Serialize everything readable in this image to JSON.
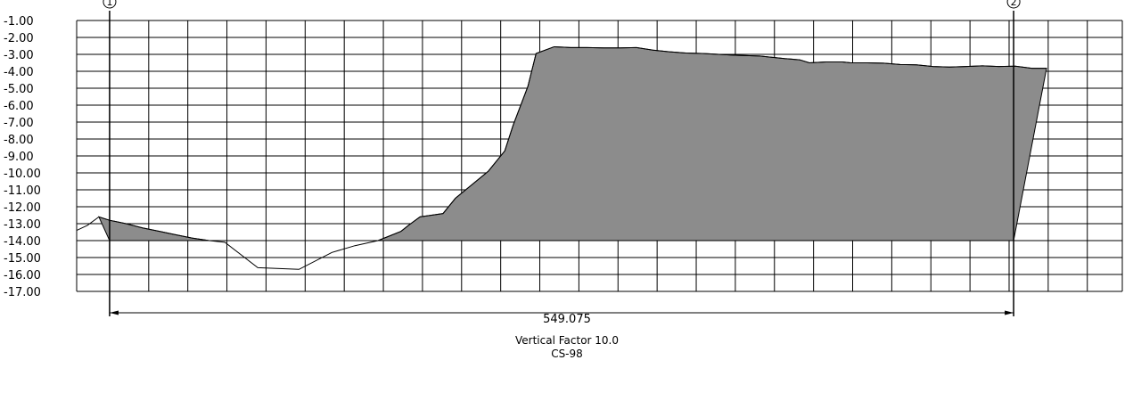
{
  "chart_data": {
    "type": "area",
    "y_ticks": [
      "-1.00",
      "-2.00",
      "-3.00",
      "-4.00",
      "-5.00",
      "-6.00",
      "-7.00",
      "-8.00",
      "-9.00",
      "-10.00",
      "-11.00",
      "-12.00",
      "-13.00",
      "-14.00",
      "-15.00",
      "-16.00",
      "-17.00"
    ],
    "ylim": [
      -17,
      -1
    ],
    "xlim": [
      -40,
      1230
    ],
    "grid": true,
    "grid_spacing_x": 47.5,
    "datum_elevation": -14.0,
    "ground_profile": {
      "x": [
        -40,
        -27,
        -13,
        0,
        20,
        40,
        60,
        80,
        100,
        121,
        140,
        180,
        230,
        270,
        298,
        326,
        354,
        363,
        377,
        405,
        420,
        460,
        480,
        490,
        508,
        518,
        540,
        560,
        580,
        600,
        620,
        640,
        660,
        680,
        700,
        720,
        740,
        760,
        790,
        800,
        820,
        838,
        850,
        870,
        890,
        900,
        920,
        940,
        960,
        980,
        1000,
        1020,
        1040,
        1060,
        1080,
        1100,
        1120,
        1138
      ],
      "y": [
        -13.4,
        -13.1,
        -12.6,
        -12.8,
        -13.0,
        -13.25,
        -13.45,
        -13.65,
        -13.85,
        -14.0,
        -14.1,
        -15.6,
        -15.7,
        -14.7,
        -14.3,
        -14.0,
        -13.45,
        -13.1,
        -12.6,
        -12.4,
        -11.5,
        -9.9,
        -8.7,
        -7.2,
        -4.9,
        -2.95,
        -2.55,
        -2.6,
        -2.6,
        -2.62,
        -2.62,
        -2.6,
        -2.75,
        -2.85,
        -2.92,
        -2.95,
        -3.0,
        -3.05,
        -3.1,
        -3.15,
        -3.25,
        -3.32,
        -3.5,
        -3.45,
        -3.45,
        -3.5,
        -3.5,
        -3.52,
        -3.6,
        -3.62,
        -3.72,
        -3.75,
        -3.72,
        -3.68,
        -3.72,
        -3.7,
        -3.82,
        -3.82
      ]
    },
    "markers": [
      {
        "label": "1",
        "x": 0
      },
      {
        "label": "2",
        "x": 1098
      }
    ],
    "dimension": {
      "label": "549.075",
      "from_x": 0,
      "to_x": 1098
    },
    "caption": [
      "Vertical Factor 10.0",
      "CS-98"
    ]
  },
  "colors": {
    "fill": "#8c8c8c",
    "line": "#000000",
    "grid": "#000000",
    "background": "#ffffff"
  }
}
